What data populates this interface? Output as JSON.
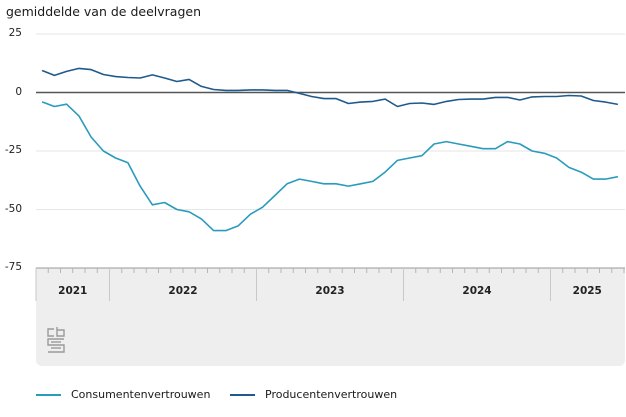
{
  "chart_data": {
    "type": "line",
    "title": "",
    "subtitle": "gemiddelde van de deelvragen",
    "xlabel": "",
    "ylabel": "gemiddelde van de deelvragen",
    "ylim": [
      -75,
      25
    ],
    "yticks": [
      25,
      0,
      -25,
      -50,
      -75
    ],
    "ytick_labels": [
      "25",
      "0",
      "-25",
      "-50",
      "-75"
    ],
    "grid": true,
    "legend_position": "bottom-left",
    "x_start": "2021-07",
    "x_frequency": "monthly",
    "x_years": [
      {
        "label": "2021",
        "start_month": "2021-07",
        "months": 6
      },
      {
        "label": "2022",
        "start_month": "2022-01",
        "months": 12
      },
      {
        "label": "2023",
        "start_month": "2023-01",
        "months": 12
      },
      {
        "label": "2024",
        "start_month": "2024-01",
        "months": 12
      },
      {
        "label": "2025",
        "start_month": "2025-01",
        "months": 6
      }
    ],
    "series": [
      {
        "name": "Consumentenvertrouwen",
        "color": "#2a9bbd",
        "values": [
          -4,
          -6,
          -5,
          -10,
          -19,
          -25,
          -28,
          -30,
          -40,
          -48,
          -47,
          -50,
          -51,
          -54,
          -59,
          -59,
          -57,
          -52,
          -49,
          -44,
          -39,
          -37,
          -38,
          -39,
          -39,
          -40,
          -39,
          -38,
          -34,
          -29,
          -28,
          -27,
          -22,
          -21,
          -22,
          -23,
          -24,
          -24,
          -21,
          -22,
          -25,
          -26,
          -28,
          -32,
          -34,
          -37,
          -37,
          -36
        ]
      },
      {
        "name": "Producentenvertrouwen",
        "color": "#1f5a8c",
        "values": [
          9.4,
          7.3,
          9.0,
          10.3,
          9.8,
          7.7,
          6.8,
          6.4,
          6.2,
          7.5,
          6.2,
          4.7,
          5.6,
          2.6,
          1.3,
          0.9,
          0.9,
          1.1,
          1.1,
          0.9,
          0.9,
          -0.4,
          -1.7,
          -2.6,
          -2.6,
          -4.7,
          -4.1,
          -3.8,
          -2.8,
          -6.0,
          -4.7,
          -4.5,
          -5.1,
          -3.8,
          -3.0,
          -2.8,
          -2.8,
          -2.1,
          -2.1,
          -3.2,
          -1.9,
          -1.7,
          -1.7,
          -1.3,
          -1.5,
          -3.4,
          -4.1,
          -5.1
        ]
      }
    ]
  },
  "logo": {
    "text": "cbs"
  }
}
